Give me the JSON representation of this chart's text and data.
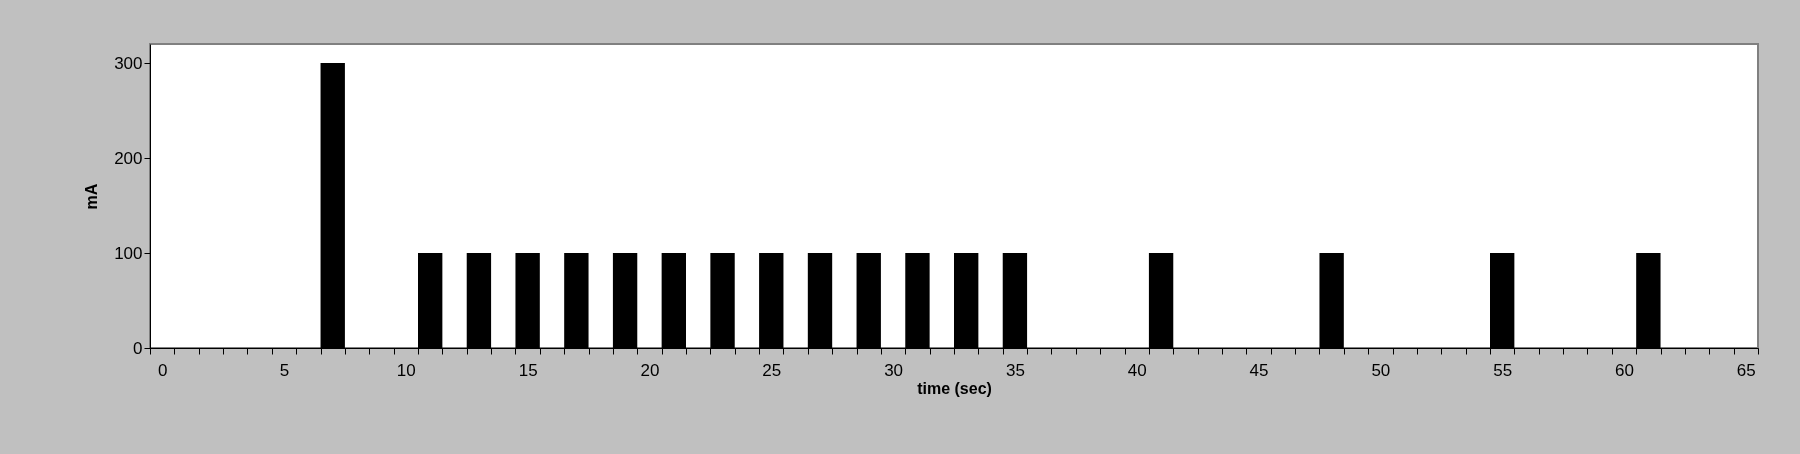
{
  "chart_data": {
    "type": "bar",
    "xlabel": "time (sec)",
    "ylabel": "mA",
    "categories": [
      "0",
      null,
      null,
      null,
      null,
      "5",
      null,
      null,
      null,
      null,
      "10",
      null,
      null,
      null,
      null,
      "15",
      null,
      null,
      null,
      null,
      "20",
      null,
      null,
      null,
      null,
      "25",
      null,
      null,
      null,
      null,
      "30",
      null,
      null,
      null,
      null,
      "35",
      null,
      null,
      null,
      null,
      "40",
      null,
      null,
      null,
      null,
      "45",
      null,
      null,
      null,
      null,
      "50",
      null,
      null,
      null,
      null,
      "55",
      null,
      null,
      null,
      null,
      "60",
      null,
      null,
      null,
      null,
      "65"
    ],
    "series": [
      {
        "color": "#000000",
        "values": [
          0,
          0,
          0,
          0,
          0,
          0,
          0,
          300,
          0,
          0,
          0,
          100,
          0,
          100,
          0,
          100,
          0,
          100,
          0,
          100,
          0,
          100,
          0,
          100,
          0,
          100,
          0,
          100,
          0,
          100,
          0,
          100,
          0,
          100,
          0,
          100,
          0,
          0,
          0,
          0,
          0,
          100,
          0,
          0,
          0,
          0,
          0,
          0,
          100,
          0,
          0,
          0,
          0,
          0,
          0,
          100,
          0,
          0,
          0,
          0,
          0,
          100,
          0,
          0,
          0,
          0
        ]
      }
    ],
    "ylim": [
      0,
      320
    ],
    "yticks": [
      0,
      100,
      200,
      300
    ],
    "grid": false
  }
}
